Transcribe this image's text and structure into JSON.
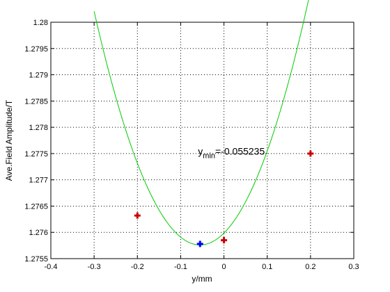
{
  "chart_data": {
    "type": "scatter",
    "title": "",
    "xlabel": "y/mm",
    "ylabel": "Ave.Field Amplitude/T",
    "xlim": [
      -0.4,
      0.3
    ],
    "ylim": [
      1.2755,
      1.28
    ],
    "grid": true,
    "x_ticks": [
      -0.4,
      -0.3,
      -0.2,
      -0.1,
      0,
      0.1,
      0.2,
      0.3
    ],
    "y_ticks": [
      1.2755,
      1.276,
      1.2765,
      1.277,
      1.2775,
      1.278,
      1.2785,
      1.279,
      1.2795,
      1.28
    ],
    "x_tick_labels": [
      "-0.4",
      "-0.3",
      "-0.2",
      "-0.1",
      "0",
      "0.1",
      "0.2",
      "0.3"
    ],
    "y_tick_labels": [
      "1.2755",
      "1.276",
      "1.2765",
      "1.277",
      "1.2775",
      "1.278",
      "1.2785",
      "1.279",
      "1.2795",
      "1.28"
    ],
    "series": [
      {
        "kind": "fit-curve",
        "color": "#00cc00",
        "x_range": [
          -0.3,
          0.3
        ],
        "quadratic": {
          "a": 0.07425,
          "x_min": -0.055235,
          "y_min": 1.27576
        }
      },
      {
        "kind": "measured-points",
        "color": "#cc0000",
        "marker": "plus",
        "points": [
          {
            "x": -0.2,
            "y": 1.27632
          },
          {
            "x": 0.0,
            "y": 1.27585
          },
          {
            "x": 0.2,
            "y": 1.2775
          }
        ]
      },
      {
        "kind": "minimum-point",
        "color": "#0000ff",
        "marker": "plus",
        "points": [
          {
            "x": -0.055235,
            "y": 1.27578
          }
        ]
      }
    ],
    "annotation": {
      "prefix": "y",
      "subscript": "min",
      "value_text": "=-0.055235",
      "x": -0.06,
      "y": 1.27748
    }
  }
}
